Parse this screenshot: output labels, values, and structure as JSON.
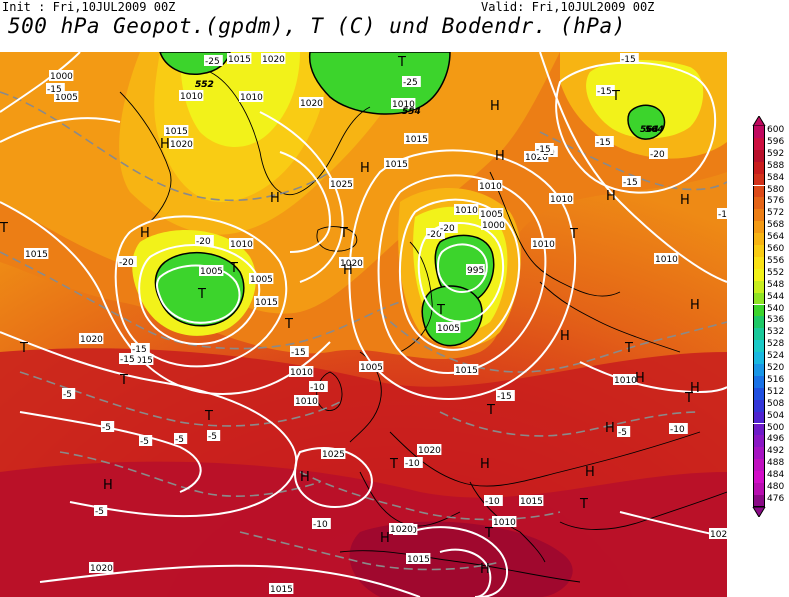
{
  "header": {
    "init": "Init : Fri,10JUL2009 00Z",
    "valid": "Valid: Fri,10JUL2009 00Z",
    "title": "500 hPa Geopot.(gpdm), T (C) und Bodendr. (hPa)"
  },
  "legend": {
    "levels": [
      {
        "value": "600",
        "color": "#c0095f"
      },
      {
        "value": "596",
        "color": "#cc1040"
      },
      {
        "value": "592",
        "color": "#b8102a"
      },
      {
        "value": "588",
        "color": "#c81d1d"
      },
      {
        "value": "584",
        "color": "#d2321b"
      },
      {
        "value": "580",
        "color": "#dc4a19"
      },
      {
        "value": "576",
        "color": "#e46417"
      },
      {
        "value": "572",
        "color": "#ec7e15"
      },
      {
        "value": "568",
        "color": "#f39a14"
      },
      {
        "value": "564",
        "color": "#f7b413"
      },
      {
        "value": "560",
        "color": "#f9cc14"
      },
      {
        "value": "556",
        "color": "#fae216"
      },
      {
        "value": "552",
        "color": "#f2f21a"
      },
      {
        "value": "548",
        "color": "#c8ee1e"
      },
      {
        "value": "544",
        "color": "#8fe324"
      },
      {
        "value": "540",
        "color": "#3cd42c"
      },
      {
        "value": "536",
        "color": "#1ec866"
      },
      {
        "value": "532",
        "color": "#1ac99a"
      },
      {
        "value": "528",
        "color": "#1bcac8"
      },
      {
        "value": "524",
        "color": "#1ab8e0"
      },
      {
        "value": "520",
        "color": "#1a96e6"
      },
      {
        "value": "516",
        "color": "#1a72e6"
      },
      {
        "value": "512",
        "color": "#2050e0"
      },
      {
        "value": "508",
        "color": "#3436d8"
      },
      {
        "value": "504",
        "color": "#4f24d0"
      },
      {
        "value": "500",
        "color": "#6e1cc8"
      },
      {
        "value": "496",
        "color": "#8a18c4"
      },
      {
        "value": "492",
        "color": "#a614c2"
      },
      {
        "value": "488",
        "color": "#c012c0"
      },
      {
        "value": "484",
        "color": "#d20ec8"
      },
      {
        "value": "480",
        "color": "#b80eb0"
      },
      {
        "value": "476",
        "color": "#8a0a86"
      }
    ]
  },
  "map": {
    "pressure_labels": [
      "1000",
      "1005",
      "1010",
      "1015",
      "1020",
      "1025",
      "1005",
      "1010",
      "1015",
      "1020",
      "1015",
      "1010",
      "1005",
      "1000",
      "995",
      "1005",
      "1010",
      "1020",
      "1015",
      "1010",
      "1020",
      "1015",
      "1010",
      "1025",
      "1020",
      "1015",
      "1010",
      "1020",
      "1015",
      "1015",
      "1010",
      "1020",
      "1010",
      "1010",
      "1010",
      "1015",
      "1020",
      "1015",
      "1020",
      "1005",
      "1010",
      "1015",
      "1020",
      "1005",
      "1010",
      "1020"
    ],
    "temp_labels": [
      "-15",
      "-25",
      "-20",
      "-20",
      "-15",
      "-15",
      "-15",
      "-20",
      "-20",
      "-25",
      "-20",
      "-15",
      "-15",
      "-20",
      "-15",
      "-10",
      "-10",
      "-15",
      "-5",
      "-5",
      "-5",
      "-5",
      "-5",
      "-10",
      "-10",
      "-5",
      "-15",
      "-10",
      "-15",
      "-5",
      "-10"
    ],
    "geopot_labels": [
      "552",
      "564",
      "552",
      "564",
      "554"
    ],
    "high_symbol": "H",
    "low_symbol": "T"
  }
}
